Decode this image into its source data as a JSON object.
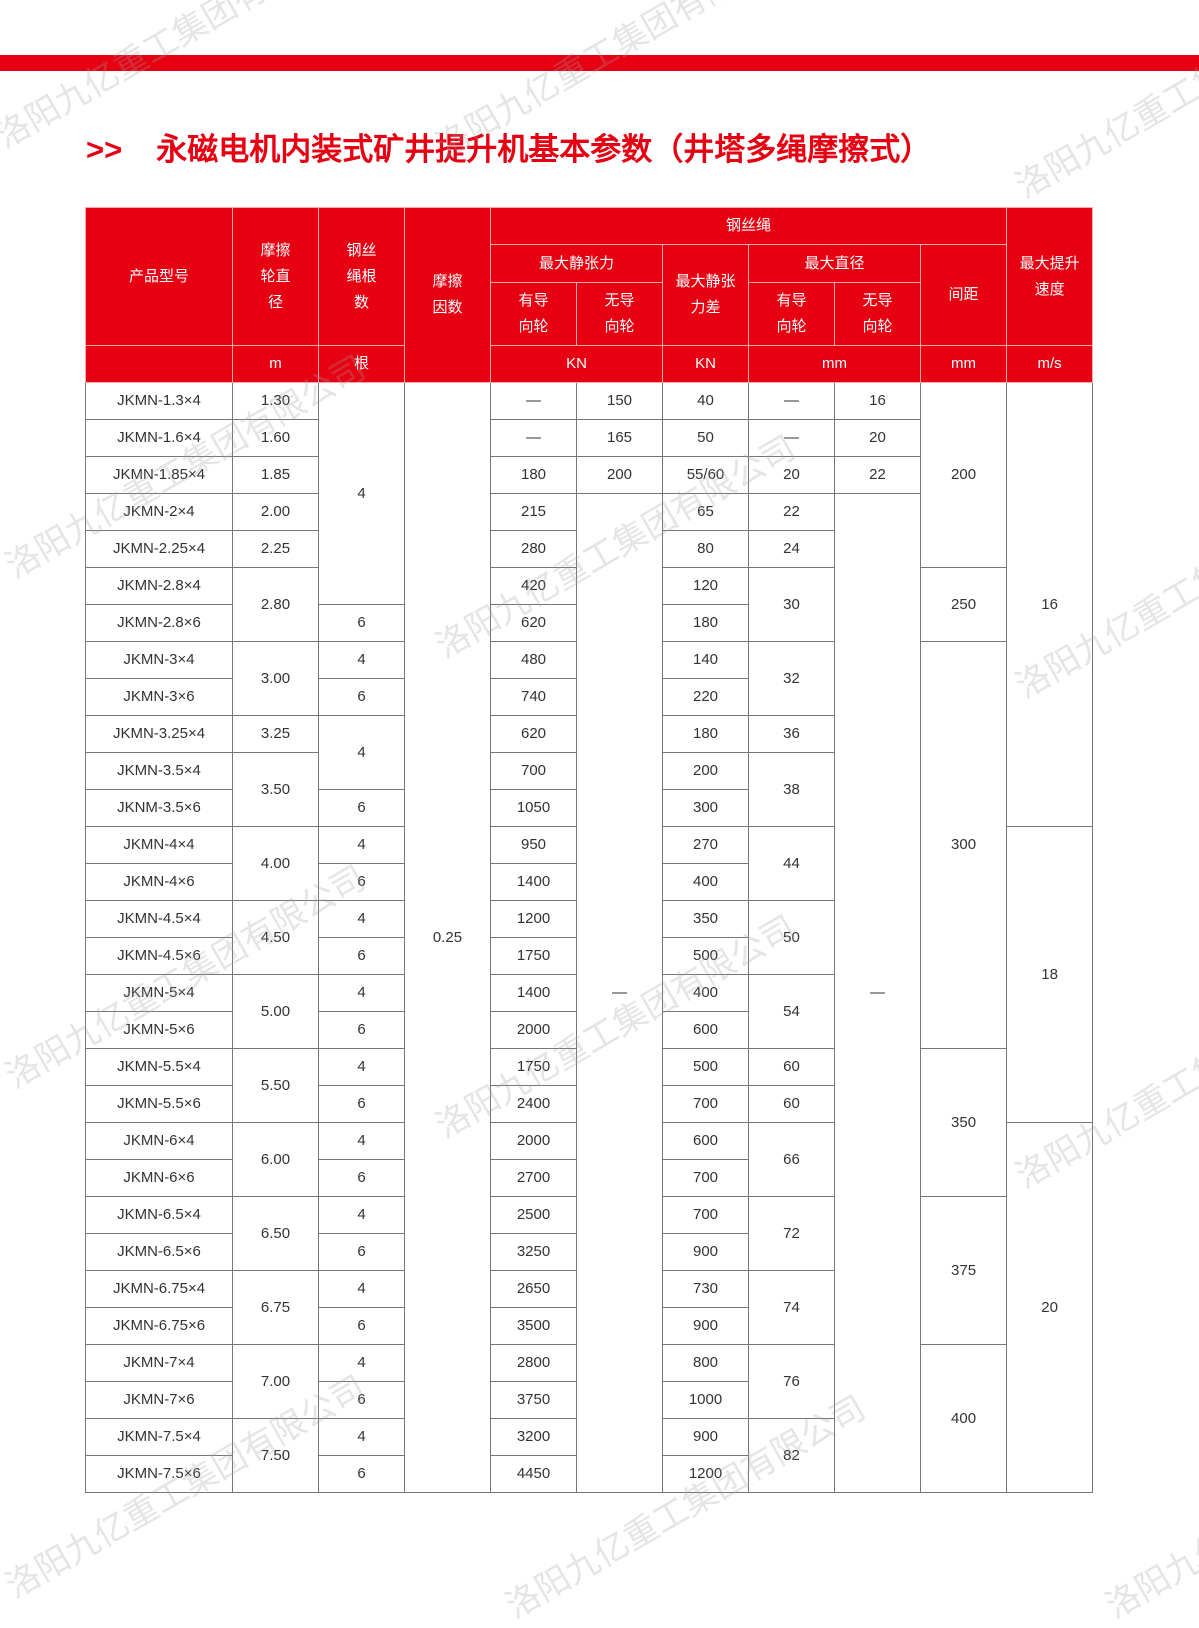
{
  "title": {
    "arrow": ">>",
    "text": "永磁电机内装式矿井提升机基本参数（井塔多绳摩擦式）"
  },
  "watermark": "洛阳九亿重工集团有限公司",
  "colors": {
    "accent": "#e60012"
  },
  "header": {
    "model": "产品型号",
    "wheel_diameter": "摩擦轮直径",
    "rope_count": "钢丝绳根数",
    "friction": "摩擦因数",
    "rope": "钢丝绳",
    "max_static_tension": "最大静张力",
    "guided": "有导向轮",
    "unguided": "无导向轮",
    "max_tension_diff": "最大静张力差",
    "max_diameter": "最大直径",
    "spacing": "间距",
    "max_speed": "最大提升速度",
    "units": {
      "wheel_diameter": "m",
      "rope_count": "根",
      "tension": "KN",
      "tension_diff": "KN",
      "diameter": "mm",
      "spacing": "mm",
      "speed": "m/s"
    }
  },
  "columns": {
    "model": [
      "JKMN-1.3×4",
      "JKMN-1.6×4",
      "JKMN-1.85×4",
      "JKMN-2×4",
      "JKMN-2.25×4",
      "JKMN-2.8×4",
      "JKMN-2.8×6",
      "JKMN-3×4",
      "JKMN-3×6",
      "JKMN-3.25×4",
      "JKMN-3.5×4",
      "JKNM-3.5×6",
      "JKMN-4×4",
      "JKMN-4×6",
      "JKMN-4.5×4",
      "JKMN-4.5×6",
      "JKMN-5×4",
      "JKMN-5×6",
      "JKMN-5.5×4",
      "JKMN-5.5×6",
      "JKMN-6×4",
      "JKMN-6×6",
      "JKMN-6.5×4",
      "JKMN-6.5×6",
      "JKMN-6.75×4",
      "JKMN-6.75×6",
      "JKMN-7×4",
      "JKMN-7×6",
      "JKMN-7.5×4",
      "JKMN-7.5×6"
    ],
    "wheel_diameter": [
      [
        "1.30",
        1
      ],
      [
        "1.60",
        1
      ],
      [
        "1.85",
        1
      ],
      [
        "2.00",
        1
      ],
      [
        "2.25",
        1
      ],
      [
        "2.80",
        2
      ],
      [
        "3.00",
        2
      ],
      [
        "3.25",
        1
      ],
      [
        "3.50",
        2
      ],
      [
        "4.00",
        2
      ],
      [
        "4.50",
        2
      ],
      [
        "5.00",
        2
      ],
      [
        "5.50",
        2
      ],
      [
        "6.00",
        2
      ],
      [
        "6.50",
        2
      ],
      [
        "6.75",
        2
      ],
      [
        "7.00",
        2
      ],
      [
        "7.50",
        2
      ]
    ],
    "rope_count": [
      [
        "4",
        6
      ],
      [
        "6",
        1
      ],
      [
        "4",
        1
      ],
      [
        "6",
        1
      ],
      [
        "4",
        2
      ],
      [
        "6",
        1
      ],
      [
        "4",
        1
      ],
      [
        "6",
        1
      ],
      [
        "4",
        1
      ],
      [
        "6",
        1
      ],
      [
        "4",
        1
      ],
      [
        "6",
        1
      ],
      [
        "4",
        1
      ],
      [
        "6",
        1
      ],
      [
        "4",
        1
      ],
      [
        "6",
        1
      ],
      [
        "4",
        1
      ],
      [
        "6",
        1
      ],
      [
        "4",
        1
      ],
      [
        "6",
        1
      ],
      [
        "4",
        1
      ],
      [
        "6",
        1
      ],
      [
        "4",
        1
      ],
      [
        "6",
        1
      ]
    ],
    "friction": [
      [
        "0.25",
        30
      ]
    ],
    "tension_guided": [
      [
        "—",
        1
      ],
      [
        "—",
        1
      ],
      [
        "180",
        1
      ],
      [
        "215",
        1
      ],
      [
        "280",
        1
      ],
      [
        "420",
        1
      ],
      [
        "620",
        1
      ],
      [
        "480",
        1
      ],
      [
        "740",
        1
      ],
      [
        "620",
        1
      ],
      [
        "700",
        1
      ],
      [
        "1050",
        1
      ],
      [
        "950",
        1
      ],
      [
        "1400",
        1
      ],
      [
        "1200",
        1
      ],
      [
        "1750",
        1
      ],
      [
        "1400",
        1
      ],
      [
        "2000",
        1
      ],
      [
        "1750",
        1
      ],
      [
        "2400",
        1
      ],
      [
        "2000",
        1
      ],
      [
        "2700",
        1
      ],
      [
        "2500",
        1
      ],
      [
        "3250",
        1
      ],
      [
        "2650",
        1
      ],
      [
        "3500",
        1
      ],
      [
        "2800",
        1
      ],
      [
        "3750",
        1
      ],
      [
        "3200",
        1
      ],
      [
        "4450",
        1
      ]
    ],
    "tension_unguided": [
      [
        "150",
        1
      ],
      [
        "165",
        1
      ],
      [
        "200",
        1
      ],
      [
        "—",
        27
      ]
    ],
    "tension_diff": [
      [
        "40",
        1
      ],
      [
        "50",
        1
      ],
      [
        "55/60",
        1
      ],
      [
        "65",
        1
      ],
      [
        "80",
        1
      ],
      [
        "120",
        1
      ],
      [
        "180",
        1
      ],
      [
        "140",
        1
      ],
      [
        "220",
        1
      ],
      [
        "180",
        1
      ],
      [
        "200",
        1
      ],
      [
        "300",
        1
      ],
      [
        "270",
        1
      ],
      [
        "400",
        1
      ],
      [
        "350",
        1
      ],
      [
        "500",
        1
      ],
      [
        "400",
        1
      ],
      [
        "600",
        1
      ],
      [
        "500",
        1
      ],
      [
        "700",
        1
      ],
      [
        "600",
        1
      ],
      [
        "700",
        1
      ],
      [
        "700",
        1
      ],
      [
        "900",
        1
      ],
      [
        "730",
        1
      ],
      [
        "900",
        1
      ],
      [
        "800",
        1
      ],
      [
        "1000",
        1
      ],
      [
        "900",
        1
      ],
      [
        "1200",
        1
      ]
    ],
    "diameter_guided": [
      [
        "—",
        1
      ],
      [
        "—",
        1
      ],
      [
        "20",
        1
      ],
      [
        "22",
        1
      ],
      [
        "24",
        1
      ],
      [
        "30",
        2
      ],
      [
        "32",
        2
      ],
      [
        "36",
        1
      ],
      [
        "38",
        2
      ],
      [
        "44",
        2
      ],
      [
        "50",
        2
      ],
      [
        "54",
        2
      ],
      [
        "60",
        1
      ],
      [
        "60",
        1
      ],
      [
        "66",
        2
      ],
      [
        "72",
        2
      ],
      [
        "74",
        2
      ],
      [
        "76",
        2
      ],
      [
        "82",
        2
      ]
    ],
    "diameter_unguided": [
      [
        "16",
        1
      ],
      [
        "20",
        1
      ],
      [
        "22",
        1
      ],
      [
        "—",
        27
      ]
    ],
    "spacing": [
      [
        "200",
        5
      ],
      [
        "250",
        2
      ],
      [
        "300",
        11
      ],
      [
        "350",
        4
      ],
      [
        "375",
        4
      ],
      [
        "400",
        4
      ]
    ],
    "speed": [
      [
        "16",
        12
      ],
      [
        "18",
        8
      ],
      [
        "20",
        10
      ]
    ]
  }
}
